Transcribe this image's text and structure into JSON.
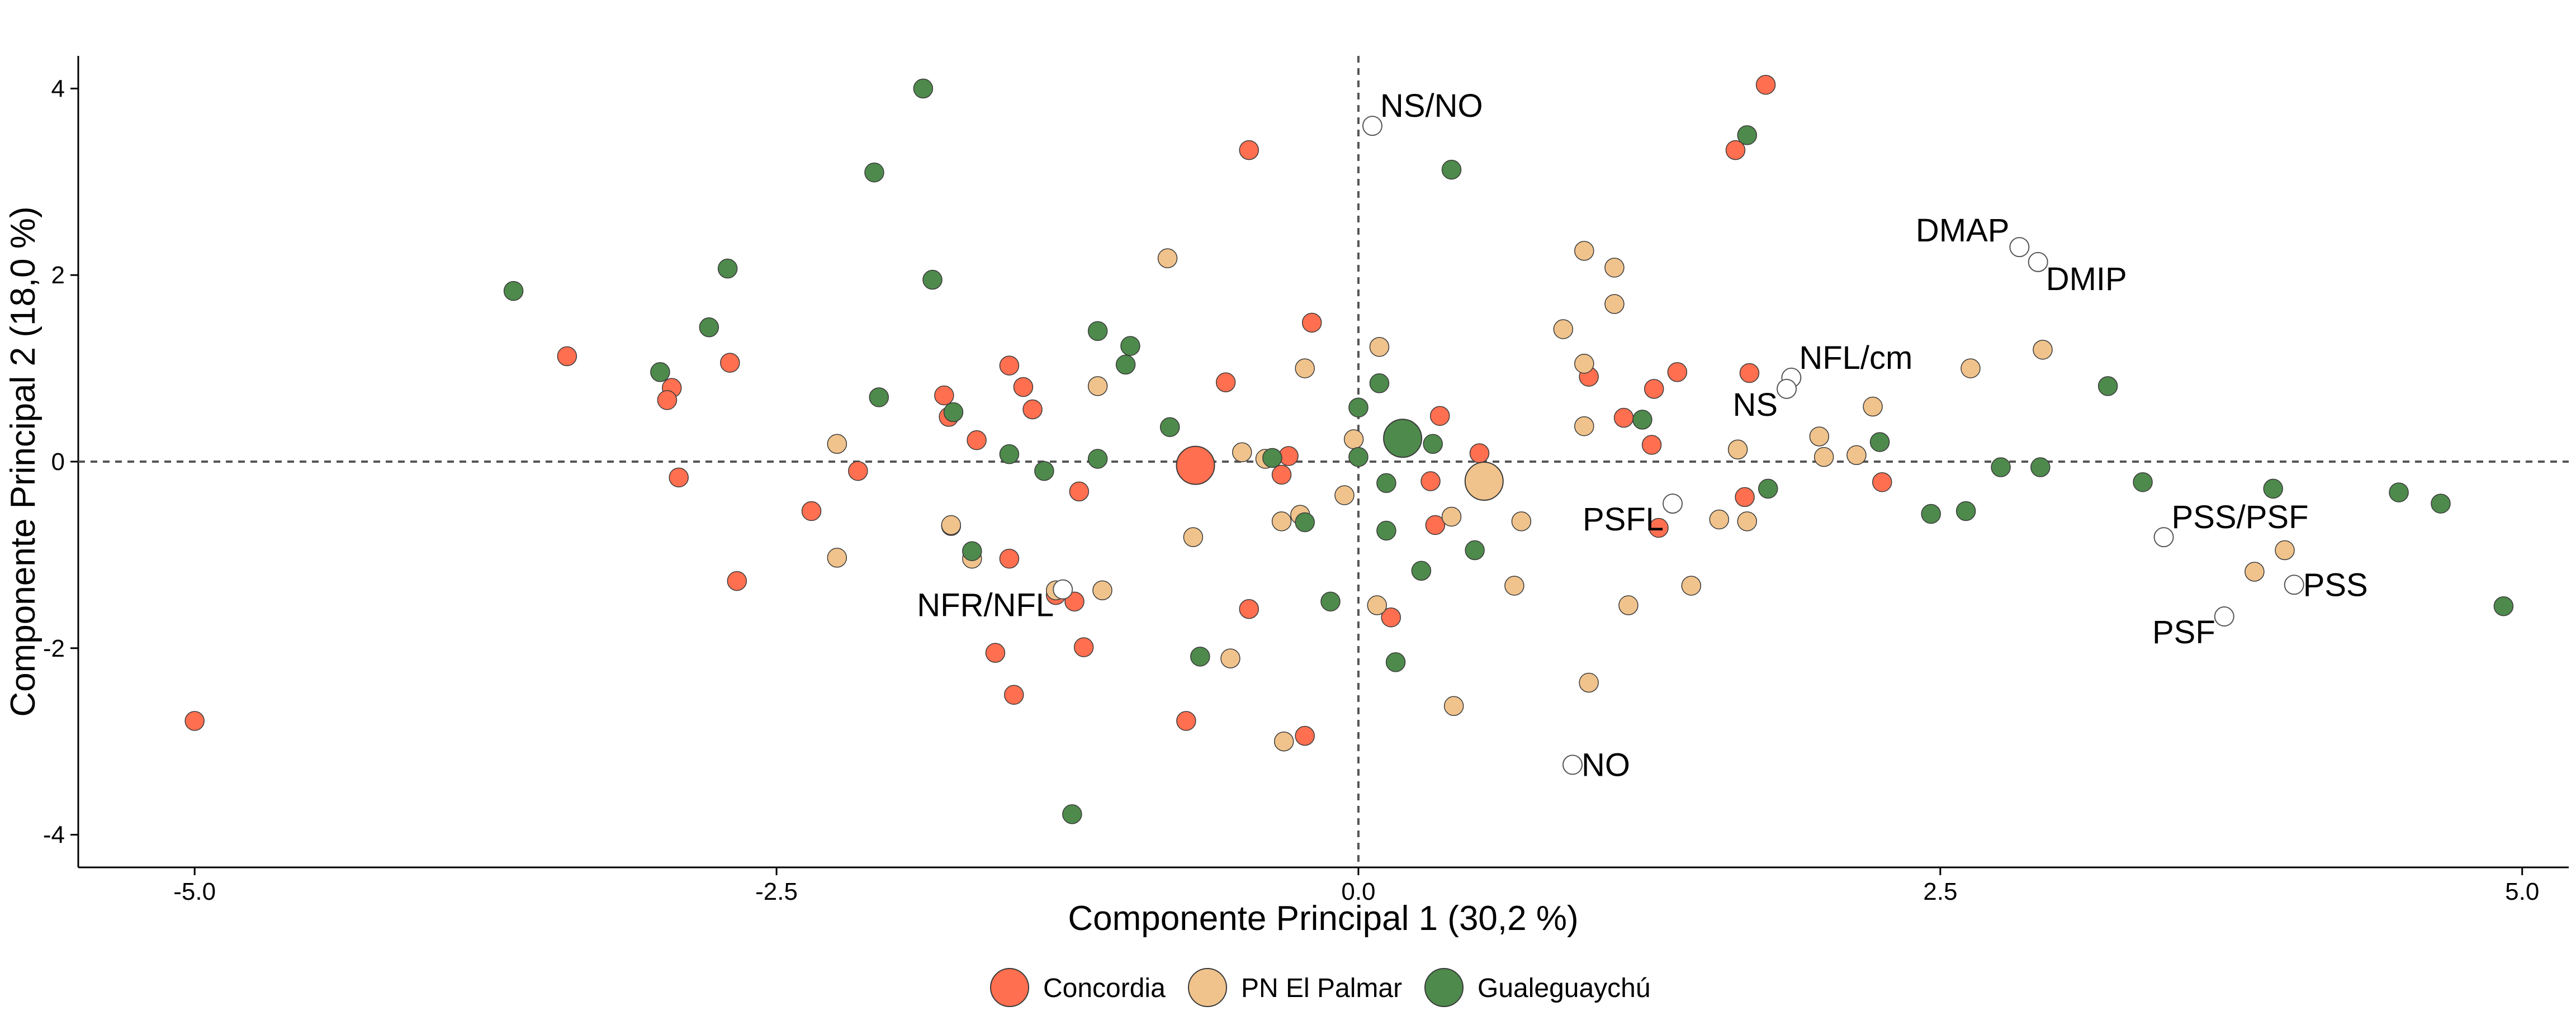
{
  "chart_data": {
    "type": "scatter",
    "title": "",
    "xlabel": "Componente Principal 1 (30,2 %)",
    "ylabel": "Componente Principal 2 (18,0 %)",
    "xlim": [
      -5.5,
      5.2
    ],
    "ylim": [
      -4.35,
      4.35
    ],
    "xticks": [
      -5.0,
      -2.5,
      0.0,
      2.5,
      5.0
    ],
    "xtick_labels": [
      "-5.0",
      "-2.5",
      "0.0",
      "2.5",
      "5.0"
    ],
    "yticks": [
      -4,
      -2,
      0,
      2,
      4
    ],
    "ytick_labels": [
      "-4",
      "-2",
      "0",
      "2",
      "4"
    ],
    "reference_lines": {
      "x": 0,
      "y": 0,
      "style": "dashed"
    },
    "grid": false,
    "legend": {
      "position": "bottom",
      "entries": [
        "Concordia",
        "PN El Palmar",
        "Gualeguaychú"
      ]
    },
    "colors": {
      "Concordia": "#FF6F50",
      "PN El Palmar": "#F0C38C",
      "Gualeguaychú": "#4E8A4C",
      "variables": "#ffffff"
    },
    "series": [
      {
        "name": "Concordia",
        "color": "#FF6F50",
        "points": [
          [
            -5.0,
            -2.78
          ],
          [
            -3.4,
            1.13
          ],
          [
            -2.95,
            0.79
          ],
          [
            -2.97,
            0.66
          ],
          [
            -2.92,
            -0.17
          ],
          [
            -2.7,
            1.06
          ],
          [
            -2.67,
            -1.28
          ],
          [
            -2.35,
            -0.53
          ],
          [
            -2.15,
            -0.1
          ],
          [
            -1.78,
            0.71
          ],
          [
            -1.76,
            0.48
          ],
          [
            -1.75,
            -0.69
          ],
          [
            -1.64,
            0.23
          ],
          [
            -1.56,
            -2.05
          ],
          [
            -1.5,
            1.03
          ],
          [
            -1.5,
            -1.04
          ],
          [
            -1.48,
            -2.5
          ],
          [
            -1.44,
            0.8
          ],
          [
            -1.4,
            0.56
          ],
          [
            -1.3,
            -1.43
          ],
          [
            -1.22,
            -1.5
          ],
          [
            -1.2,
            -0.32
          ],
          [
            -1.18,
            -1.99
          ],
          [
            -0.74,
            -2.78
          ],
          [
            -0.57,
            0.85
          ],
          [
            -0.47,
            3.34
          ],
          [
            -0.47,
            -1.58
          ],
          [
            -0.33,
            -0.14
          ],
          [
            -0.3,
            0.06
          ],
          [
            -0.23,
            -2.94
          ],
          [
            -0.2,
            1.49
          ],
          [
            0.14,
            -1.67
          ],
          [
            0.31,
            -0.21
          ],
          [
            0.33,
            -0.68
          ],
          [
            0.35,
            0.49
          ],
          [
            0.52,
            0.09
          ],
          [
            0.99,
            0.91
          ],
          [
            1.14,
            0.47
          ],
          [
            1.26,
            0.18
          ],
          [
            1.27,
            0.78
          ],
          [
            1.29,
            -0.71
          ],
          [
            1.37,
            0.96
          ],
          [
            1.62,
            3.34
          ],
          [
            1.66,
            -0.38
          ],
          [
            1.68,
            0.95
          ],
          [
            1.75,
            4.04
          ],
          [
            2.25,
            -0.22
          ]
        ]
      },
      {
        "name": "PN El Palmar",
        "color": "#F0C38C",
        "points": [
          [
            -2.24,
            0.19
          ],
          [
            -2.24,
            -1.03
          ],
          [
            -1.75,
            -0.68
          ],
          [
            -1.66,
            -1.04
          ],
          [
            -1.3,
            -1.38
          ],
          [
            -1.12,
            0.81
          ],
          [
            -1.1,
            -1.38
          ],
          [
            -0.82,
            2.18
          ],
          [
            -0.71,
            -0.81
          ],
          [
            -0.55,
            -2.11
          ],
          [
            -0.5,
            0.1
          ],
          [
            -0.4,
            0.03
          ],
          [
            -0.33,
            -0.64
          ],
          [
            -0.32,
            -3.0
          ],
          [
            -0.25,
            -0.57
          ],
          [
            -0.23,
            1.0
          ],
          [
            -0.06,
            -0.36
          ],
          [
            -0.02,
            0.24
          ],
          [
            0.08,
            -1.54
          ],
          [
            0.09,
            1.23
          ],
          [
            0.4,
            -0.59
          ],
          [
            0.41,
            -2.62
          ],
          [
            0.67,
            -1.33
          ],
          [
            0.7,
            -0.64
          ],
          [
            0.88,
            1.42
          ],
          [
            0.97,
            2.26
          ],
          [
            0.97,
            1.05
          ],
          [
            0.97,
            0.38
          ],
          [
            0.99,
            -2.37
          ],
          [
            1.1,
            1.69
          ],
          [
            1.1,
            2.08
          ],
          [
            1.16,
            -1.54
          ],
          [
            1.43,
            -1.33
          ],
          [
            1.55,
            -0.62
          ],
          [
            1.63,
            0.13
          ],
          [
            1.67,
            -0.64
          ],
          [
            1.98,
            0.27
          ],
          [
            2.0,
            0.05
          ],
          [
            2.14,
            0.07
          ],
          [
            2.21,
            0.59
          ],
          [
            2.63,
            1.0
          ],
          [
            2.94,
            1.2
          ],
          [
            3.85,
            -1.18
          ],
          [
            3.98,
            -0.95
          ]
        ]
      },
      {
        "name": "Gualeguaychú",
        "color": "#4E8A4C",
        "points": [
          [
            -3.63,
            1.83
          ],
          [
            -3.0,
            0.96
          ],
          [
            -2.79,
            1.44
          ],
          [
            -2.71,
            2.07
          ],
          [
            -2.08,
            3.1
          ],
          [
            -2.06,
            0.69
          ],
          [
            -1.87,
            4.0
          ],
          [
            -1.83,
            1.95
          ],
          [
            -1.74,
            0.53
          ],
          [
            -1.66,
            -0.96
          ],
          [
            -1.5,
            0.08
          ],
          [
            -1.35,
            -0.1
          ],
          [
            -1.23,
            -3.78
          ],
          [
            -1.12,
            1.4
          ],
          [
            -1.12,
            0.03
          ],
          [
            -1.0,
            1.04
          ],
          [
            -0.98,
            1.24
          ],
          [
            -0.81,
            0.37
          ],
          [
            -0.68,
            -2.09
          ],
          [
            -0.37,
            0.04
          ],
          [
            -0.23,
            -0.65
          ],
          [
            -0.12,
            -1.5
          ],
          [
            0.0,
            0.05
          ],
          [
            0.0,
            0.58
          ],
          [
            0.09,
            0.84
          ],
          [
            0.12,
            -0.23
          ],
          [
            0.12,
            -0.74
          ],
          [
            0.16,
            -2.15
          ],
          [
            0.27,
            -1.17
          ],
          [
            0.32,
            0.19
          ],
          [
            0.4,
            3.13
          ],
          [
            0.5,
            -0.95
          ],
          [
            1.22,
            0.45
          ],
          [
            1.67,
            3.5
          ],
          [
            1.76,
            -0.29
          ],
          [
            2.24,
            0.21
          ],
          [
            2.46,
            -0.56
          ],
          [
            2.61,
            -0.53
          ],
          [
            2.76,
            -0.06
          ],
          [
            2.93,
            -0.06
          ],
          [
            3.22,
            0.81
          ],
          [
            3.37,
            -0.22
          ],
          [
            3.93,
            -0.29
          ],
          [
            4.47,
            -0.33
          ],
          [
            4.65,
            -0.45
          ],
          [
            4.92,
            -1.55
          ]
        ]
      }
    ],
    "centroids": [
      {
        "series": "Concordia",
        "x": -0.7,
        "y": -0.04
      },
      {
        "series": "PN El Palmar",
        "x": 0.54,
        "y": -0.21
      },
      {
        "series": "Gualeguaychú",
        "x": 0.19,
        "y": 0.25
      }
    ],
    "variables": [
      {
        "label": "NS/NO",
        "x": 0.06,
        "y": 3.6,
        "anchor": "right-above"
      },
      {
        "label": "DMAP",
        "x": 2.84,
        "y": 2.3,
        "anchor": "left"
      },
      {
        "label": "DMIP",
        "x": 2.92,
        "y": 2.14,
        "anchor": "right-below"
      },
      {
        "label": "NFL/cm",
        "x": 1.86,
        "y": 0.9,
        "anchor": "right-above"
      },
      {
        "label": "NS",
        "x": 1.84,
        "y": 0.78,
        "anchor": "left-below"
      },
      {
        "label": "PSFL",
        "x": 1.35,
        "y": -0.45,
        "anchor": "left-below"
      },
      {
        "label": "PSS/PSF",
        "x": 3.46,
        "y": -0.81,
        "anchor": "right-above"
      },
      {
        "label": "PSS",
        "x": 4.02,
        "y": -1.32,
        "anchor": "right"
      },
      {
        "label": "PSF",
        "x": 3.72,
        "y": -1.66,
        "anchor": "left-below"
      },
      {
        "label": "NFR/NFL",
        "x": -1.27,
        "y": -1.37,
        "anchor": "left-below"
      },
      {
        "label": "NO",
        "x": 0.92,
        "y": -3.25,
        "anchor": "right"
      }
    ]
  }
}
